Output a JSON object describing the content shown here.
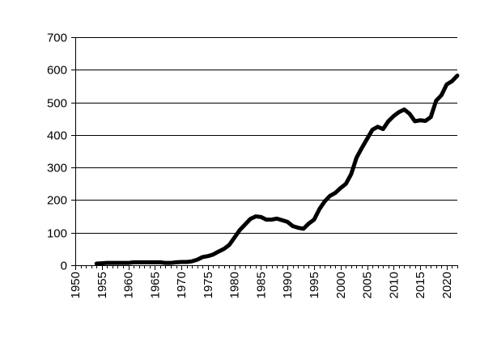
{
  "chart_data": {
    "type": "line",
    "title": "",
    "xlabel": "",
    "ylabel": "",
    "xlim": [
      1950,
      2022
    ],
    "ylim": [
      0,
      700
    ],
    "x_ticks": [
      1950,
      1955,
      1960,
      1965,
      1970,
      1975,
      1980,
      1985,
      1990,
      1995,
      2000,
      2005,
      2010,
      2015,
      2020
    ],
    "y_ticks": [
      0,
      100,
      200,
      300,
      400,
      500,
      600,
      700
    ],
    "grid": "horizontal",
    "legend": "none",
    "line_color": "#000000",
    "x": [
      1954,
      1955,
      1956,
      1957,
      1958,
      1959,
      1960,
      1961,
      1962,
      1963,
      1964,
      1965,
      1966,
      1967,
      1968,
      1969,
      1970,
      1971,
      1972,
      1973,
      1974,
      1975,
      1976,
      1977,
      1978,
      1979,
      1980,
      1981,
      1982,
      1983,
      1984,
      1985,
      1986,
      1987,
      1988,
      1989,
      1990,
      1991,
      1992,
      1993,
      1994,
      1995,
      1996,
      1997,
      1998,
      1999,
      2000,
      2001,
      2002,
      2003,
      2004,
      2005,
      2006,
      2007,
      2008,
      2009,
      2010,
      2011,
      2012,
      2013,
      2014,
      2015,
      2016,
      2017,
      2018,
      2019,
      2020,
      2021,
      2022
    ],
    "values": [
      5,
      6,
      7,
      7,
      7,
      7,
      7,
      9,
      9,
      9,
      9,
      9,
      9,
      7,
      7,
      9,
      10,
      10,
      12,
      17,
      25,
      28,
      33,
      42,
      50,
      62,
      85,
      108,
      125,
      142,
      150,
      148,
      140,
      140,
      143,
      138,
      133,
      120,
      115,
      112,
      128,
      140,
      172,
      196,
      213,
      222,
      237,
      250,
      280,
      330,
      360,
      388,
      416,
      425,
      418,
      442,
      458,
      470,
      478,
      465,
      442,
      445,
      443,
      455,
      505,
      522,
      555,
      565,
      582
    ]
  }
}
